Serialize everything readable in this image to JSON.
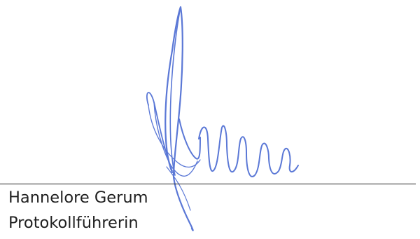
{
  "signatory": {
    "name": "Hannelore Gerum",
    "role": "Protokollführerin"
  },
  "colors": {
    "ink": "#5b78d6",
    "rule": "#222222",
    "text": "#1f1f1f"
  }
}
